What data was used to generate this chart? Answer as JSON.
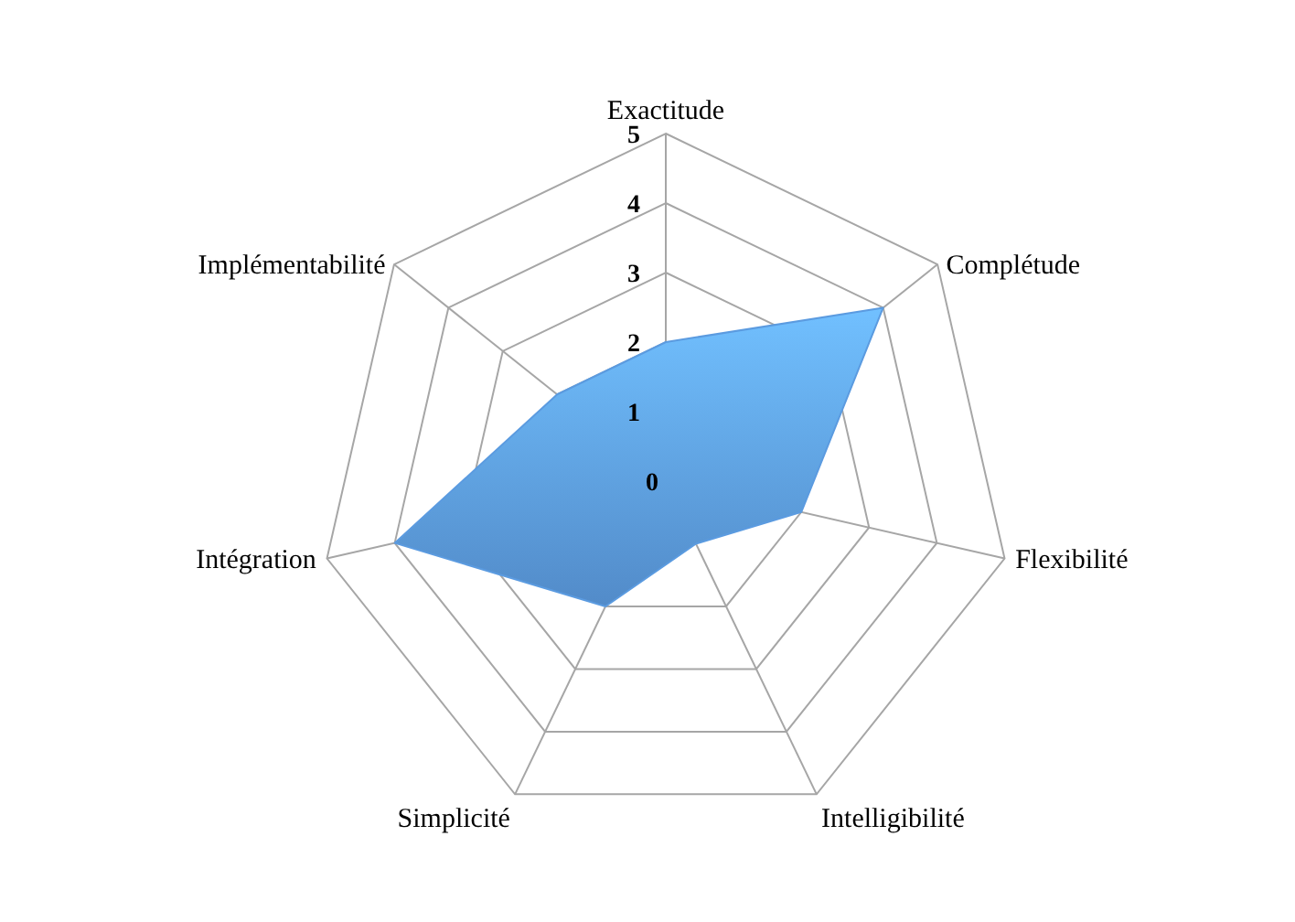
{
  "chart_data": {
    "type": "radar",
    "categories": [
      "Exactitude",
      "Complétude",
      "Flexibilité",
      "Intelligibilité",
      "Simplicité",
      "Intégration",
      "Implémentabilité"
    ],
    "series": [
      {
        "color": "#5b9be0",
        "values": [
          2,
          4,
          2,
          1,
          2,
          4,
          2
        ]
      }
    ],
    "ylim": [
      0,
      5
    ],
    "yticks": [
      0,
      1,
      2,
      3,
      4,
      5
    ],
    "grid": true
  }
}
